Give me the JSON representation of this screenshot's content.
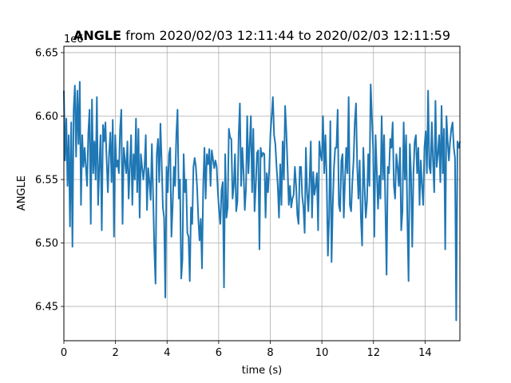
{
  "chart_data": {
    "type": "line",
    "title": {
      "bold": "ANGLE",
      "rest": " from 2020/02/03 12:11:44 to 2020/02/03 12:11:59"
    },
    "xlabel": "time (s)",
    "ylabel": "ANGLE",
    "offset_text": "1e6",
    "xlim": [
      0,
      15.35
    ],
    "ylim": [
      6.423,
      6.655
    ],
    "y_scale_note": "values shown are ×1e6",
    "x_ticks": [
      0,
      2,
      4,
      6,
      8,
      10,
      12,
      14
    ],
    "x_tick_labels": [
      "0",
      "2",
      "4",
      "6",
      "8",
      "10",
      "12",
      "14"
    ],
    "y_ticks": [
      6.45,
      6.5,
      6.55,
      6.6,
      6.65
    ],
    "y_tick_labels": [
      "6.45",
      "6.50",
      "6.55",
      "6.60",
      "6.65"
    ],
    "grid": true,
    "color": "#1f77b4",
    "series": [
      {
        "values": [
          6.62,
          6.565,
          6.598,
          6.545,
          6.585,
          6.513,
          6.595,
          6.497,
          6.605,
          6.624,
          6.568,
          6.62,
          6.578,
          6.627,
          6.53,
          6.585,
          6.56,
          6.575,
          6.56,
          6.545,
          6.587,
          6.605,
          6.515,
          6.613,
          6.555,
          6.58,
          6.55,
          6.615,
          6.53,
          6.56,
          6.585,
          6.51,
          6.593,
          6.58,
          6.595,
          6.565,
          6.54,
          6.57,
          6.587,
          6.548,
          6.597,
          6.505,
          6.585,
          6.56,
          6.565,
          6.555,
          6.59,
          6.605,
          6.515,
          6.575,
          6.565,
          6.555,
          6.58,
          6.535,
          6.56,
          6.585,
          6.53,
          6.57,
          6.55,
          6.598,
          6.54,
          6.59,
          6.52,
          6.57,
          6.56,
          6.55,
          6.56,
          6.585,
          6.526,
          6.559,
          6.548,
          6.534,
          6.578,
          6.538,
          6.495,
          6.468,
          6.57,
          6.582,
          6.548,
          6.594,
          6.564,
          6.528,
          6.52,
          6.457,
          6.56,
          6.54,
          6.57,
          6.575,
          6.505,
          6.53,
          6.56,
          6.545,
          6.585,
          6.605,
          6.535,
          6.55,
          6.472,
          6.487,
          6.57,
          6.54,
          6.55,
          6.508,
          6.505,
          6.47,
          6.528,
          6.515,
          6.56,
          6.567,
          6.56,
          6.544,
          6.519,
          6.502,
          6.519,
          6.48,
          6.545,
          6.575,
          6.535,
          6.57,
          6.562,
          6.574,
          6.545,
          6.573,
          6.566,
          6.559,
          6.565,
          6.56,
          6.54,
          6.525,
          6.515,
          6.542,
          6.548,
          6.465,
          6.57,
          6.52,
          6.528,
          6.59,
          6.583,
          6.582,
          6.535,
          6.545,
          6.57,
          6.525,
          6.533,
          6.585,
          6.61,
          6.545,
          6.575,
          6.556,
          6.526,
          6.543,
          6.6,
          6.555,
          6.577,
          6.6,
          6.54,
          6.59,
          6.525,
          6.545,
          6.571,
          6.573,
          6.495,
          6.575,
          6.568,
          6.571,
          6.57,
          6.52,
          6.555,
          6.54,
          6.558,
          6.586,
          6.6,
          6.615,
          6.585,
          6.578,
          6.56,
          6.545,
          6.52,
          6.562,
          6.53,
          6.58,
          6.55,
          6.608,
          6.588,
          6.56,
          6.53,
          6.545,
          6.528,
          6.535,
          6.538,
          6.56,
          6.545,
          6.522,
          6.515,
          6.56,
          6.56,
          6.537,
          6.528,
          6.508,
          6.575,
          6.54,
          6.525,
          6.548,
          6.58,
          6.52,
          6.556,
          6.538,
          6.545,
          6.555,
          6.51,
          6.58,
          6.57,
          6.565,
          6.6,
          6.555,
          6.585,
          6.55,
          6.49,
          6.52,
          6.596,
          6.485,
          6.53,
          6.56,
          6.575,
          6.575,
          6.605,
          6.53,
          6.525,
          6.565,
          6.57,
          6.52,
          6.55,
          6.575,
          6.555,
          6.615,
          6.53,
          6.525,
          6.548,
          6.565,
          6.595,
          6.61,
          6.56,
          6.535,
          6.565,
          6.52,
          6.498,
          6.575,
          6.545,
          6.52,
          6.533,
          6.57,
          6.545,
          6.625,
          6.6,
          6.575,
          6.505,
          6.585,
          6.557,
          6.527,
          6.553,
          6.535,
          6.6,
          6.55,
          6.585,
          6.53,
          6.475,
          6.56,
          6.555,
          6.582,
          6.575,
          6.595,
          6.545,
          6.535,
          6.57,
          6.56,
          6.545,
          6.575,
          6.51,
          6.525,
          6.595,
          6.55,
          6.585,
          6.52,
          6.47,
          6.578,
          6.555,
          6.497,
          6.555,
          6.58,
          6.585,
          6.555,
          6.575,
          6.53,
          6.565,
          6.545,
          6.53,
          6.575,
          6.588,
          6.555,
          6.62,
          6.56,
          6.555,
          6.595,
          6.565,
          6.54,
          6.612,
          6.56,
          6.57,
          6.585,
          6.548,
          6.608,
          6.555,
          6.59,
          6.495,
          6.6,
          6.58,
          6.565,
          6.58,
          6.59,
          6.595,
          6.575,
          6.567,
          6.439,
          6.58,
          6.575,
          6.58
        ]
      }
    ]
  }
}
